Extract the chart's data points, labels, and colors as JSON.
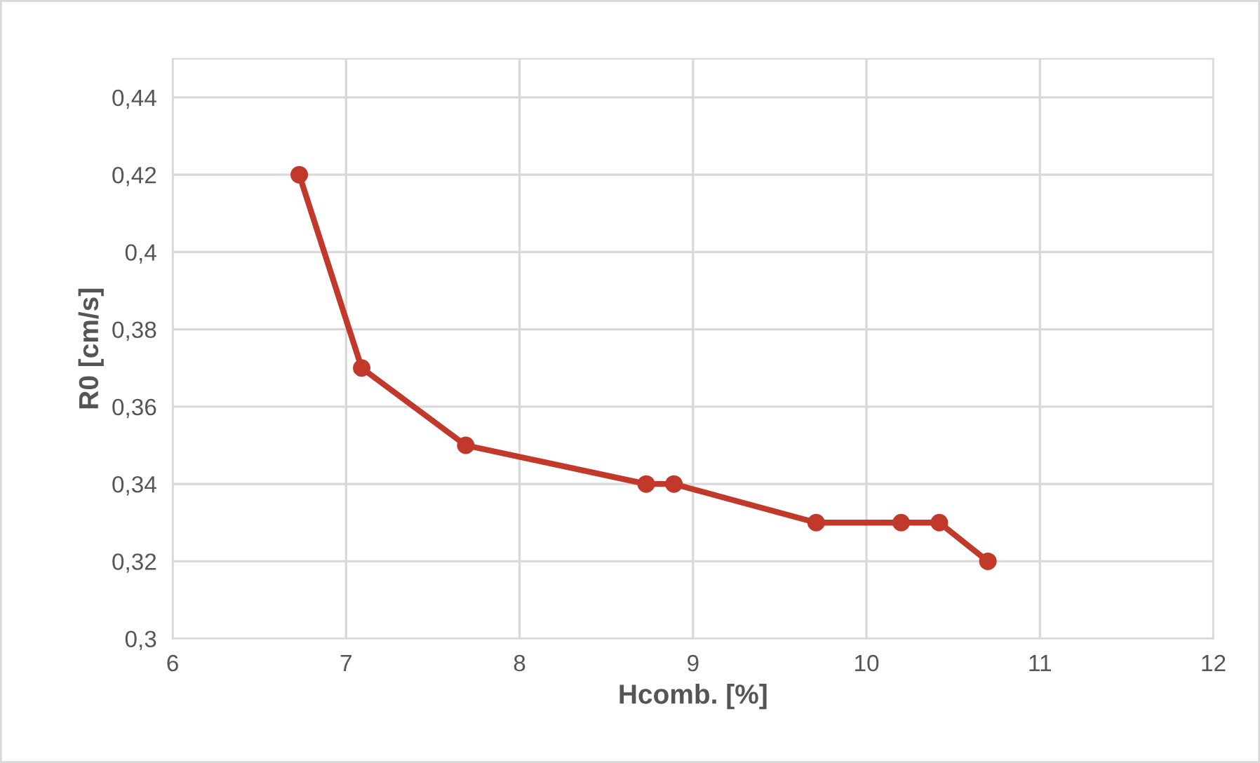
{
  "chart_data": {
    "type": "line",
    "xlabel": "Hcomb. [%]",
    "ylabel": "R0 [cm/s]",
    "x": [
      6.73,
      7.09,
      7.69,
      8.73,
      8.89,
      9.71,
      10.2,
      10.42,
      10.7
    ],
    "series": [
      {
        "color": "#c0392b",
        "values": [
          0.42,
          0.37,
          0.35,
          0.34,
          0.34,
          0.33,
          0.33,
          0.33,
          0.32
        ]
      }
    ],
    "xlim": [
      6,
      12
    ],
    "xticks": [
      6,
      7,
      8,
      9,
      10,
      11,
      12
    ],
    "ylim": [
      0.3,
      0.45
    ],
    "yticks": [
      {
        "value": 0.3,
        "label": "0,3"
      },
      {
        "value": 0.32,
        "label": "0,32"
      },
      {
        "value": 0.34,
        "label": "0,34"
      },
      {
        "value": 0.36,
        "label": "0,36"
      },
      {
        "value": 0.38,
        "label": "0,38"
      },
      {
        "value": 0.4,
        "label": "0,4"
      },
      {
        "value": 0.42,
        "label": "0,42"
      },
      {
        "value": 0.44,
        "label": "0,44"
      }
    ],
    "grid": true,
    "marker": "circle",
    "line_style": "solid",
    "legend": false
  }
}
